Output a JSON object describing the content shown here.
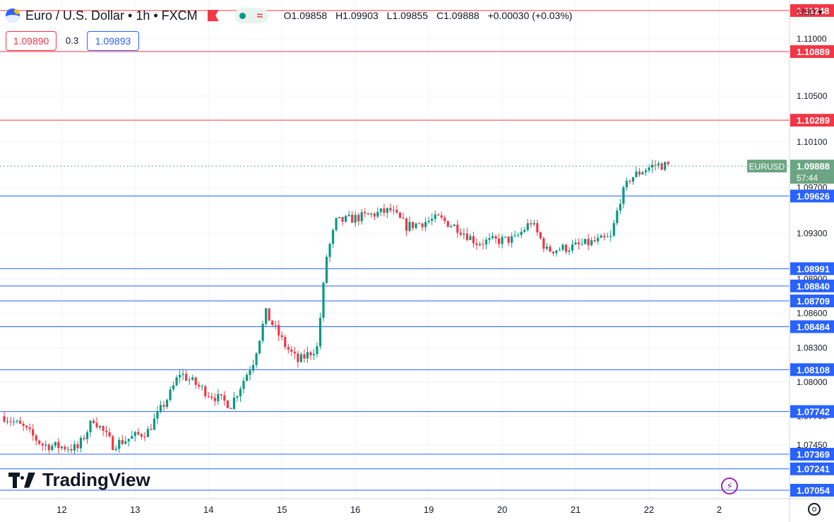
{
  "header": {
    "symbol_title": "Euro / U.S. Dollar • 1h • FXCM",
    "ohlc": {
      "open": "O1.09858",
      "high": "H1.09903",
      "low": "L1.09855",
      "close": "C1.09888",
      "change": "+0.00030 (+0.03%)"
    },
    "sell_price": "1.09890",
    "spread": "0.3",
    "buy_price": "1.09893",
    "currency": "USD"
  },
  "branding": {
    "logo_text": "TradingView"
  },
  "icons": {
    "symbol": "globe-icon",
    "flag": "flag-icon",
    "indicators": "wave-icon",
    "alert": "bolt-icon",
    "settings": "gear-icon"
  },
  "colors": {
    "up": "#089981",
    "down": "#f23645",
    "resistance": "#f23645",
    "support": "#2962ff",
    "last_price": "#6ca583"
  },
  "chart_data": {
    "type": "candlestick",
    "title": "Euro / U.S. Dollar • 1h • FXCM",
    "ylim": [
      1.0698,
      1.1134
    ],
    "y_ticks": [
      "1.11000",
      "1.10500",
      "1.10100",
      "1.09700",
      "1.09300",
      "1.08900",
      "1.08600",
      "1.08300",
      "1.08000",
      "1.07700",
      "1.07450"
    ],
    "x_ticks": [
      {
        "label": "12",
        "index": 18
      },
      {
        "label": "13",
        "index": 41
      },
      {
        "label": "14",
        "index": 64
      },
      {
        "label": "15",
        "index": 87
      },
      {
        "label": "16",
        "index": 110
      },
      {
        "label": "19",
        "index": 133
      },
      {
        "label": "20",
        "index": 156
      },
      {
        "label": "21",
        "index": 179
      },
      {
        "label": "22",
        "index": 202
      },
      {
        "label": "2",
        "index": 224
      }
    ],
    "levels": [
      {
        "value": "1.11248",
        "kind": "resistance"
      },
      {
        "value": "1.10889",
        "kind": "resistance"
      },
      {
        "value": "1.10289",
        "kind": "resistance"
      },
      {
        "value": "1.09626",
        "kind": "support"
      },
      {
        "value": "1.08991",
        "kind": "support"
      },
      {
        "value": "1.08840",
        "kind": "support"
      },
      {
        "value": "1.08709",
        "kind": "support"
      },
      {
        "value": "1.08484",
        "kind": "support"
      },
      {
        "value": "1.08108",
        "kind": "support"
      },
      {
        "value": "1.07742",
        "kind": "support"
      },
      {
        "value": "1.07369",
        "kind": "support"
      },
      {
        "value": "1.07241",
        "kind": "support"
      },
      {
        "value": "1.07054",
        "kind": "support"
      }
    ],
    "last_price": {
      "symbol": "EURUSD",
      "value": "1.09888",
      "countdown": "57:44"
    },
    "anchors": [
      [
        0,
        1.077
      ],
      [
        6,
        1.076
      ],
      [
        12,
        1.0745
      ],
      [
        23,
        1.0742
      ],
      [
        28,
        1.0768
      ],
      [
        34,
        1.0745
      ],
      [
        45,
        1.0757
      ],
      [
        52,
        1.079
      ],
      [
        55,
        1.0808
      ],
      [
        64,
        1.079
      ],
      [
        71,
        1.078
      ],
      [
        78,
        1.0818
      ],
      [
        82,
        1.086
      ],
      [
        88,
        1.0832
      ],
      [
        92,
        1.0818
      ],
      [
        98,
        1.083
      ],
      [
        101,
        1.091
      ],
      [
        104,
        1.094
      ],
      [
        113,
        1.0945
      ],
      [
        121,
        1.095
      ],
      [
        126,
        1.0936
      ],
      [
        136,
        1.0943
      ],
      [
        142,
        1.0935
      ],
      [
        148,
        1.0922
      ],
      [
        160,
        1.0925
      ],
      [
        165,
        1.094
      ],
      [
        170,
        1.0915
      ],
      [
        178,
        1.0918
      ],
      [
        190,
        1.0926
      ],
      [
        193,
        1.096
      ],
      [
        196,
        1.0978
      ],
      [
        200,
        1.0985
      ],
      [
        204,
        1.099
      ],
      [
        208,
        1.0989
      ]
    ]
  }
}
